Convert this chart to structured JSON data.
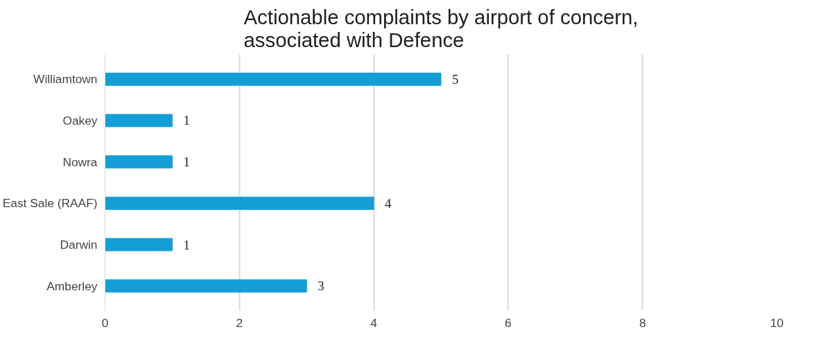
{
  "chart_data": {
    "type": "bar",
    "orientation": "horizontal",
    "title": "Actionable complaints by airport of concern,\nassociated with Defence",
    "categories": [
      "Williamtown",
      "Oakey",
      "Nowra",
      "East Sale (RAAF)",
      "Darwin",
      "Amberley"
    ],
    "values": [
      5,
      1,
      1,
      4,
      1,
      3
    ],
    "color": "#139ed6",
    "xlim": [
      0,
      10
    ],
    "xticks": [
      0,
      2,
      4,
      6,
      8,
      10
    ],
    "grid": "x",
    "data_labels": true
  }
}
